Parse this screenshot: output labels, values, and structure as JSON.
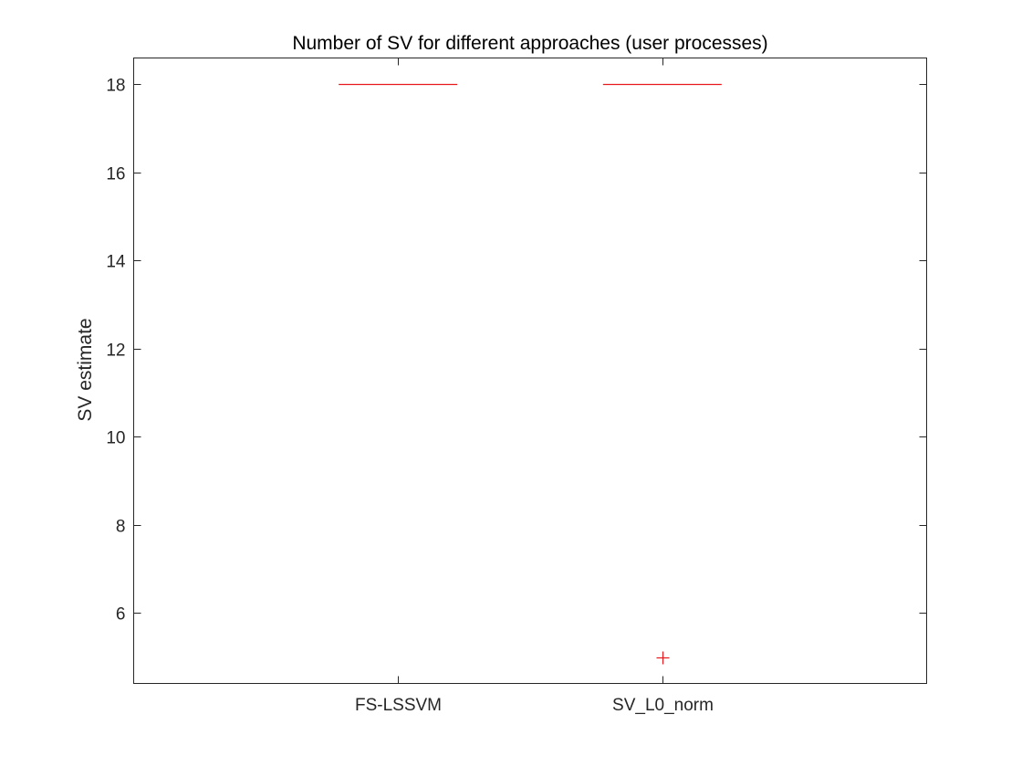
{
  "chart_data": {
    "type": "box",
    "title": "Number of SV for different approaches (user processes)",
    "xlabel": "",
    "ylabel": "SV estimate",
    "categories": [
      "FS-LSSVM",
      "SV_L0_norm"
    ],
    "ylim": [
      4.4,
      18.6
    ],
    "yticks": [
      6,
      8,
      10,
      12,
      14,
      16,
      18
    ],
    "ytick_labels": [
      "6",
      "8",
      "10",
      "12",
      "14",
      "16",
      "18"
    ],
    "grid": false,
    "boxes": [
      {
        "category": "FS-LSSVM",
        "min": 18,
        "q1": 18,
        "median": 18,
        "q3": 18,
        "max": 18,
        "outliers": []
      },
      {
        "category": "SV_L0_norm",
        "min": 18,
        "q1": 18,
        "median": 18,
        "q3": 18,
        "max": 18,
        "outliers": [
          5
        ]
      }
    ],
    "colors": {
      "median": "#e8191c",
      "outlier": "#e8191c",
      "axes": "#262626"
    }
  }
}
